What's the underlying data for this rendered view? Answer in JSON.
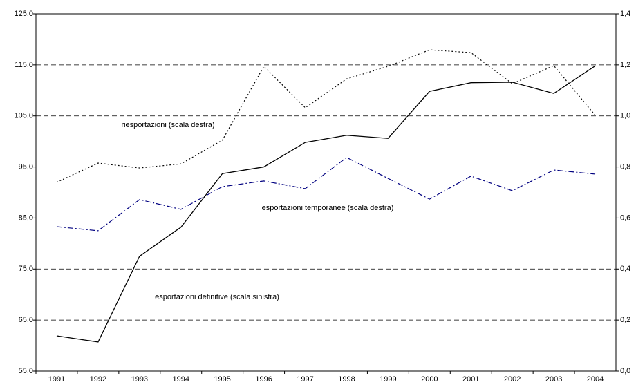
{
  "chart_data": {
    "type": "line",
    "categories": [
      "1991",
      "1992",
      "1993",
      "1994",
      "1995",
      "1996",
      "1997",
      "1998",
      "1999",
      "2000",
      "2001",
      "2002",
      "2003",
      "2004"
    ],
    "series": [
      {
        "name": "riesportazioni (scala destra)",
        "color": "#000000",
        "style": "dotted",
        "axis": "y2",
        "values": [
          0.74,
          0.815,
          0.796,
          0.812,
          0.905,
          1.194,
          1.032,
          1.145,
          1.194,
          1.259,
          1.248,
          1.126,
          1.197,
          1.002
        ]
      },
      {
        "name": "esportazioni temporanee (scala destra)",
        "color": "#000080",
        "style": "dashdot",
        "axis": "y2",
        "values": [
          0.566,
          0.55,
          0.672,
          0.634,
          0.723,
          0.745,
          0.715,
          0.837,
          0.755,
          0.674,
          0.764,
          0.707,
          0.788,
          0.772
        ]
      },
      {
        "name": "esportazioni definitive (scala sinistra)",
        "color": "#000000",
        "style": "solid",
        "values": [
          61.9,
          60.7,
          77.5,
          83.2,
          93.7,
          95.0,
          99.8,
          101.2,
          100.6,
          109.8,
          111.5,
          111.6,
          109.4,
          114.8
        ]
      }
    ],
    "ylim": [
      55,
      125
    ],
    "yticks": [
      {
        "value": 55,
        "label": "55,0"
      },
      {
        "value": 65,
        "label": "65,0"
      },
      {
        "value": 75,
        "label": "75,0"
      },
      {
        "value": 85,
        "label": "85,0"
      },
      {
        "value": 95,
        "label": "95,0"
      },
      {
        "value": 105,
        "label": "105,0"
      },
      {
        "value": 115,
        "label": "115,0"
      },
      {
        "value": 125,
        "label": "125,0"
      }
    ],
    "y2lim": [
      0,
      1.4
    ],
    "y2ticks": [
      {
        "value": 0,
        "label": "0,0"
      },
      {
        "value": 0.2,
        "label": "0,2"
      },
      {
        "value": 0.4,
        "label": "0,4"
      },
      {
        "value": 0.6,
        "label": "0,6"
      },
      {
        "value": 0.8,
        "label": "0,8"
      },
      {
        "value": 1.0,
        "label": "1,0"
      },
      {
        "value": 1.2,
        "label": "1,2"
      },
      {
        "value": 1.4,
        "label": "1,4"
      }
    ],
    "grid": true
  }
}
